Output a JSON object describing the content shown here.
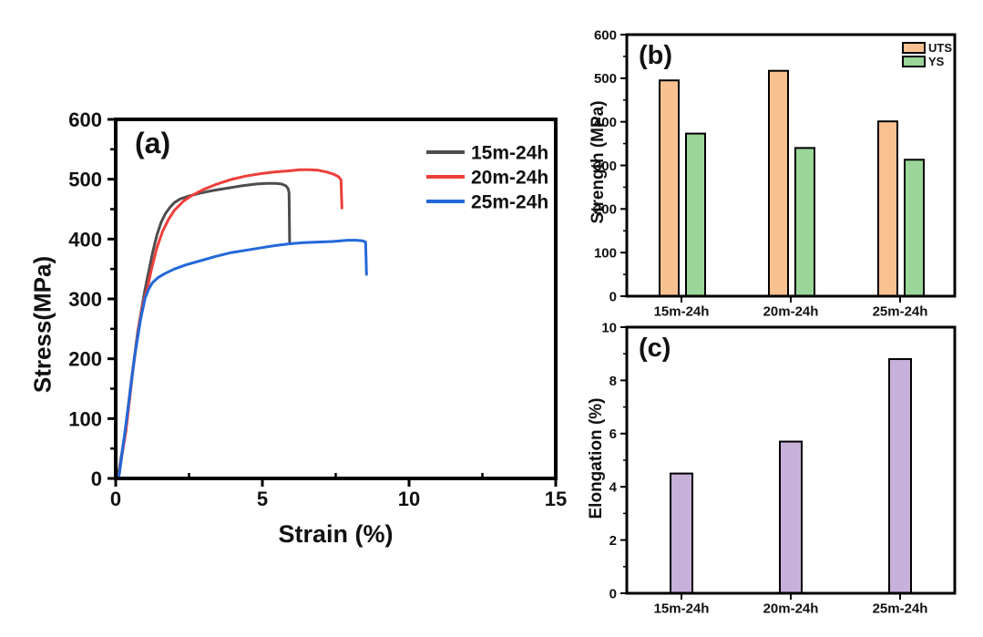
{
  "figure": {
    "background": "#ffffff",
    "text_color": "#111111",
    "axis_color": "#000000"
  },
  "chart_data": [
    {
      "id": "a",
      "type": "line",
      "panel_label": "(a)",
      "xlabel": "Strain (%)",
      "ylabel": "Stress(MPa)",
      "xlim": [
        0,
        15
      ],
      "ylim": [
        0,
        600
      ],
      "xticks": [
        0,
        5,
        10,
        15
      ],
      "xminor": [
        2.5,
        7.5,
        12.5
      ],
      "yticks": [
        0,
        100,
        200,
        300,
        400,
        500,
        600
      ],
      "yminor_step": 50,
      "grid": false,
      "legend_position": "top-right-inside",
      "series": [
        {
          "name": "15m-24h",
          "color": "#4d4d4d",
          "points": [
            [
              0,
              0
            ],
            [
              0.08,
              4
            ],
            [
              0.3,
              70
            ],
            [
              0.55,
              170
            ],
            [
              0.75,
              245
            ],
            [
              0.9,
              288
            ],
            [
              1.0,
              316
            ],
            [
              1.12,
              345
            ],
            [
              1.25,
              376
            ],
            [
              1.4,
              406
            ],
            [
              1.55,
              428
            ],
            [
              1.7,
              443
            ],
            [
              1.85,
              453
            ],
            [
              2.0,
              461
            ],
            [
              2.2,
              467
            ],
            [
              2.5,
              472
            ],
            [
              2.9,
              477
            ],
            [
              3.3,
              481
            ],
            [
              3.8,
              485
            ],
            [
              4.3,
              489
            ],
            [
              4.8,
              492
            ],
            [
              5.15,
              493
            ],
            [
              5.45,
              493
            ],
            [
              5.65,
              492
            ],
            [
              5.8,
              489
            ],
            [
              5.88,
              484
            ],
            [
              5.91,
              477
            ],
            [
              5.93,
              395
            ]
          ]
        },
        {
          "name": "20m-24h",
          "color": "#ec3f3b",
          "points": [
            [
              0,
              0
            ],
            [
              0.1,
              4
            ],
            [
              0.35,
              80
            ],
            [
              0.6,
              185
            ],
            [
              0.8,
              258
            ],
            [
              0.95,
              296
            ],
            [
              1.08,
              318
            ],
            [
              1.22,
              350
            ],
            [
              1.4,
              385
            ],
            [
              1.6,
              413
            ],
            [
              1.8,
              433
            ],
            [
              2.0,
              448
            ],
            [
              2.3,
              463
            ],
            [
              2.6,
              473
            ],
            [
              3.0,
              483
            ],
            [
              3.4,
              491
            ],
            [
              3.9,
              499
            ],
            [
              4.4,
              505
            ],
            [
              4.9,
              509
            ],
            [
              5.4,
              512
            ],
            [
              5.9,
              514
            ],
            [
              6.3,
              516
            ],
            [
              6.6,
              516
            ],
            [
              6.9,
              515
            ],
            [
              7.2,
              512
            ],
            [
              7.45,
              508
            ],
            [
              7.6,
              504
            ],
            [
              7.68,
              499
            ],
            [
              7.71,
              452
            ]
          ]
        },
        {
          "name": "25m-24h",
          "color": "#2368d9",
          "points": [
            [
              0,
              0
            ],
            [
              0.12,
              6
            ],
            [
              0.4,
              110
            ],
            [
              0.65,
              205
            ],
            [
              0.85,
              266
            ],
            [
              1.0,
              301
            ],
            [
              1.12,
              316
            ],
            [
              1.25,
              327
            ],
            [
              1.45,
              336
            ],
            [
              1.7,
              343
            ],
            [
              2.0,
              350
            ],
            [
              2.4,
              357
            ],
            [
              2.9,
              364
            ],
            [
              3.4,
              371
            ],
            [
              3.9,
              377
            ],
            [
              4.4,
              381
            ],
            [
              4.9,
              385
            ],
            [
              5.4,
              389
            ],
            [
              5.9,
              392
            ],
            [
              6.4,
              394
            ],
            [
              6.9,
              395
            ],
            [
              7.4,
              396
            ],
            [
              7.9,
              398
            ],
            [
              8.2,
              398
            ],
            [
              8.42,
              397
            ],
            [
              8.52,
              395
            ],
            [
              8.55,
              341
            ]
          ]
        }
      ]
    },
    {
      "id": "b",
      "type": "bar",
      "panel_label": "(b)",
      "xlabel": "",
      "ylabel": "Strength (MPa)",
      "ylim": [
        0,
        600
      ],
      "yticks": [
        0,
        100,
        200,
        300,
        400,
        500,
        600
      ],
      "yminor_step": 50,
      "grid": false,
      "categories": [
        "15m-24h",
        "20m-24h",
        "25m-24h"
      ],
      "legend_position": "top-right-inside",
      "series": [
        {
          "name": "UTS",
          "color": "#f9c191",
          "values": [
            495,
            517,
            401
          ]
        },
        {
          "name": "YS",
          "color": "#9bd699",
          "values": [
            373,
            340,
            313
          ]
        }
      ]
    },
    {
      "id": "c",
      "type": "bar",
      "panel_label": "(c)",
      "xlabel": "",
      "ylabel": "Elongation (%)",
      "ylim": [
        0,
        10
      ],
      "yticks": [
        0,
        2,
        4,
        6,
        8,
        10
      ],
      "yminor_step": 1,
      "grid": false,
      "categories": [
        "15m-24h",
        "20m-24h",
        "25m-24h"
      ],
      "legend_position": "none",
      "series": [
        {
          "name": "Elongation",
          "color": "#c6b1db",
          "values": [
            4.5,
            5.7,
            8.8
          ]
        }
      ]
    }
  ]
}
